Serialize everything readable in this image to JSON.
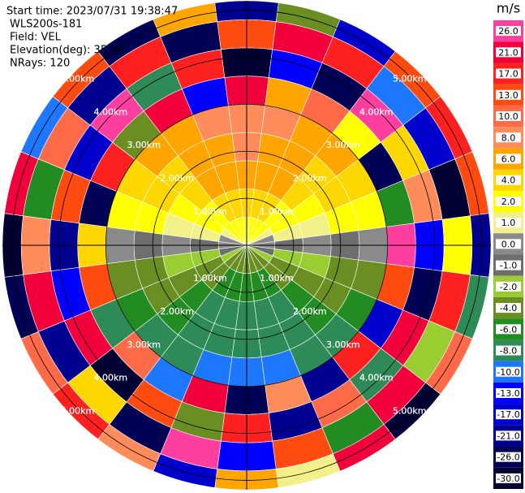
{
  "chart_data": {
    "type": "ppi",
    "header": [
      "Start time: 2023/07/31 19:38:47",
      "WLS200s-181",
      "Field: VEL",
      "Elevation(deg): 35.30",
      "NRays: 120"
    ],
    "rlim": [
      0,
      5.2
    ],
    "rings": [
      {
        "value": 1,
        "label": "1.00km"
      },
      {
        "value": 2,
        "label": "2.00km"
      },
      {
        "value": 3,
        "label": "3.00km"
      },
      {
        "value": 4,
        "label": "4.00km"
      },
      {
        "value": 5,
        "label": "5.00km"
      }
    ],
    "azimuths": [
      0,
      15,
      30,
      45,
      60,
      75,
      90,
      105,
      120,
      135,
      150,
      165,
      180,
      195,
      210,
      225,
      240,
      255,
      270,
      285,
      300,
      315,
      330,
      345
    ],
    "range_edges": [
      0,
      0.6,
      1.2,
      1.8,
      2.4,
      3.0,
      3.6,
      4.2,
      4.8,
      5.2
    ],
    "values": [
      [
        3.2,
        4.8,
        7.2,
        8,
        8.8,
        24,
        -28,
        15,
        -19
      ],
      [
        3.1,
        4.6,
        6.9,
        7.7,
        8.5,
        7,
        -12,
        22,
        -3
      ],
      [
        2.8,
        4.1,
        6.2,
        6.9,
        7.6,
        11,
        -24,
        18,
        -15
      ],
      [
        2.3,
        3.4,
        5.1,
        5.7,
        6.3,
        3,
        27,
        -9,
        13
      ],
      [
        1.6,
        2.4,
        3.6,
        4,
        4.4,
        -22,
        5,
        -17,
        20
      ],
      [
        0.8,
        1.3,
        1.9,
        2.1,
        2.3,
        -6,
        9,
        -27,
        16
      ],
      [
        0.2,
        -0.3,
        0.4,
        -0.2,
        0.5,
        26,
        -11,
        2,
        -20
      ],
      [
        -0.8,
        -1.3,
        -1.9,
        -2.1,
        -2.3,
        14,
        -25,
        19,
        -7
      ],
      [
        -1.6,
        -2.4,
        -3.6,
        -4,
        -4.4,
        -14,
        23,
        -2,
        10
      ],
      [
        -2.3,
        -3.4,
        -5.1,
        -5.7,
        -6.3,
        18,
        -8,
        25,
        -29
      ],
      [
        -2.8,
        -4.1,
        -6.2,
        -6.9,
        -7.6,
        -18,
        12,
        -5,
        22
      ],
      [
        -3.1,
        -4.6,
        -6.9,
        -7.7,
        -8.5,
        9,
        -21,
        16,
        1
      ],
      [
        -3.2,
        -4.8,
        -7.2,
        -8,
        -8.8,
        -26,
        17,
        -12,
        6
      ],
      [
        -3.1,
        -4.6,
        -6.9,
        -7.7,
        -8.5,
        21,
        -4,
        27,
        -16
      ],
      [
        -2.8,
        -4.1,
        -6.2,
        -6.9,
        -7.6,
        -10,
        15,
        -23,
        8
      ],
      [
        -2.3,
        -3.4,
        -5.1,
        -5.7,
        -6.3,
        12,
        -27,
        4,
        19
      ],
      [
        -1.6,
        -2.4,
        -3.6,
        -4,
        -4.4,
        -7,
        24,
        -18,
        11
      ],
      [
        -0.8,
        -1.3,
        -1.9,
        -2.1,
        -2.3,
        16,
        -13,
        21,
        -25
      ],
      [
        0.2,
        -0.3,
        0.4,
        -0.2,
        0.5,
        5,
        -19,
        9,
        -28
      ],
      [
        0.8,
        1.3,
        1.9,
        2.1,
        2.3,
        -23,
        13,
        -6,
        25
      ],
      [
        1.6,
        2.4,
        3.6,
        4,
        4.4,
        19,
        -16,
        11,
        -9
      ],
      [
        2.3,
        3.4,
        5.1,
        5.7,
        6.3,
        -3,
        26,
        -20,
        14
      ],
      [
        2.8,
        4.1,
        6.2,
        6.9,
        7.6,
        22,
        -7,
        17,
        -24
      ],
      [
        3.1,
        4.6,
        6.9,
        7.7,
        8.5,
        -12,
        20,
        -26,
        7
      ]
    ],
    "colorbar": {
      "unit": "m/s",
      "levels": [
        {
          "value": 26,
          "label": "26.0"
        },
        {
          "value": 21,
          "label": "21.0"
        },
        {
          "value": 17,
          "label": "17.0"
        },
        {
          "value": 13,
          "label": "13.0"
        },
        {
          "value": 10,
          "label": "10.0"
        },
        {
          "value": 8,
          "label": "8.0"
        },
        {
          "value": 6,
          "label": "6.0"
        },
        {
          "value": 4,
          "label": "4.0"
        },
        {
          "value": 2,
          "label": "2.0"
        },
        {
          "value": 1,
          "label": "1.0"
        },
        {
          "value": 0,
          "label": "0.0"
        },
        {
          "value": -1,
          "label": "-1.0"
        },
        {
          "value": -2,
          "label": "-2.0"
        },
        {
          "value": -4,
          "label": "-4.0"
        },
        {
          "value": -6,
          "label": "-6.0"
        },
        {
          "value": -8,
          "label": "-8.0"
        },
        {
          "value": -10,
          "label": "-10.0"
        },
        {
          "value": -13,
          "label": "-13.0"
        },
        {
          "value": -17,
          "label": "-17.0"
        },
        {
          "value": -21,
          "label": "-21.0"
        },
        {
          "value": -26,
          "label": "-26.0"
        },
        {
          "value": -30,
          "label": "-30.0"
        }
      ],
      "colors": [
        "#ff3fa0",
        "#f2003c",
        "#ff2020",
        "#ff4a10",
        "#ff6a48",
        "#ff8c5a",
        "#ffa500",
        "#ffd700",
        "#ffff00",
        "#f3f08a",
        "#8a8a8a",
        "#6e6e6e",
        "#9acd32",
        "#6b8e23",
        "#228b22",
        "#2e8b57",
        "#1e78ff",
        "#0000ff",
        "#0000cd",
        "#000090",
        "#000055",
        "#000033"
      ]
    }
  }
}
